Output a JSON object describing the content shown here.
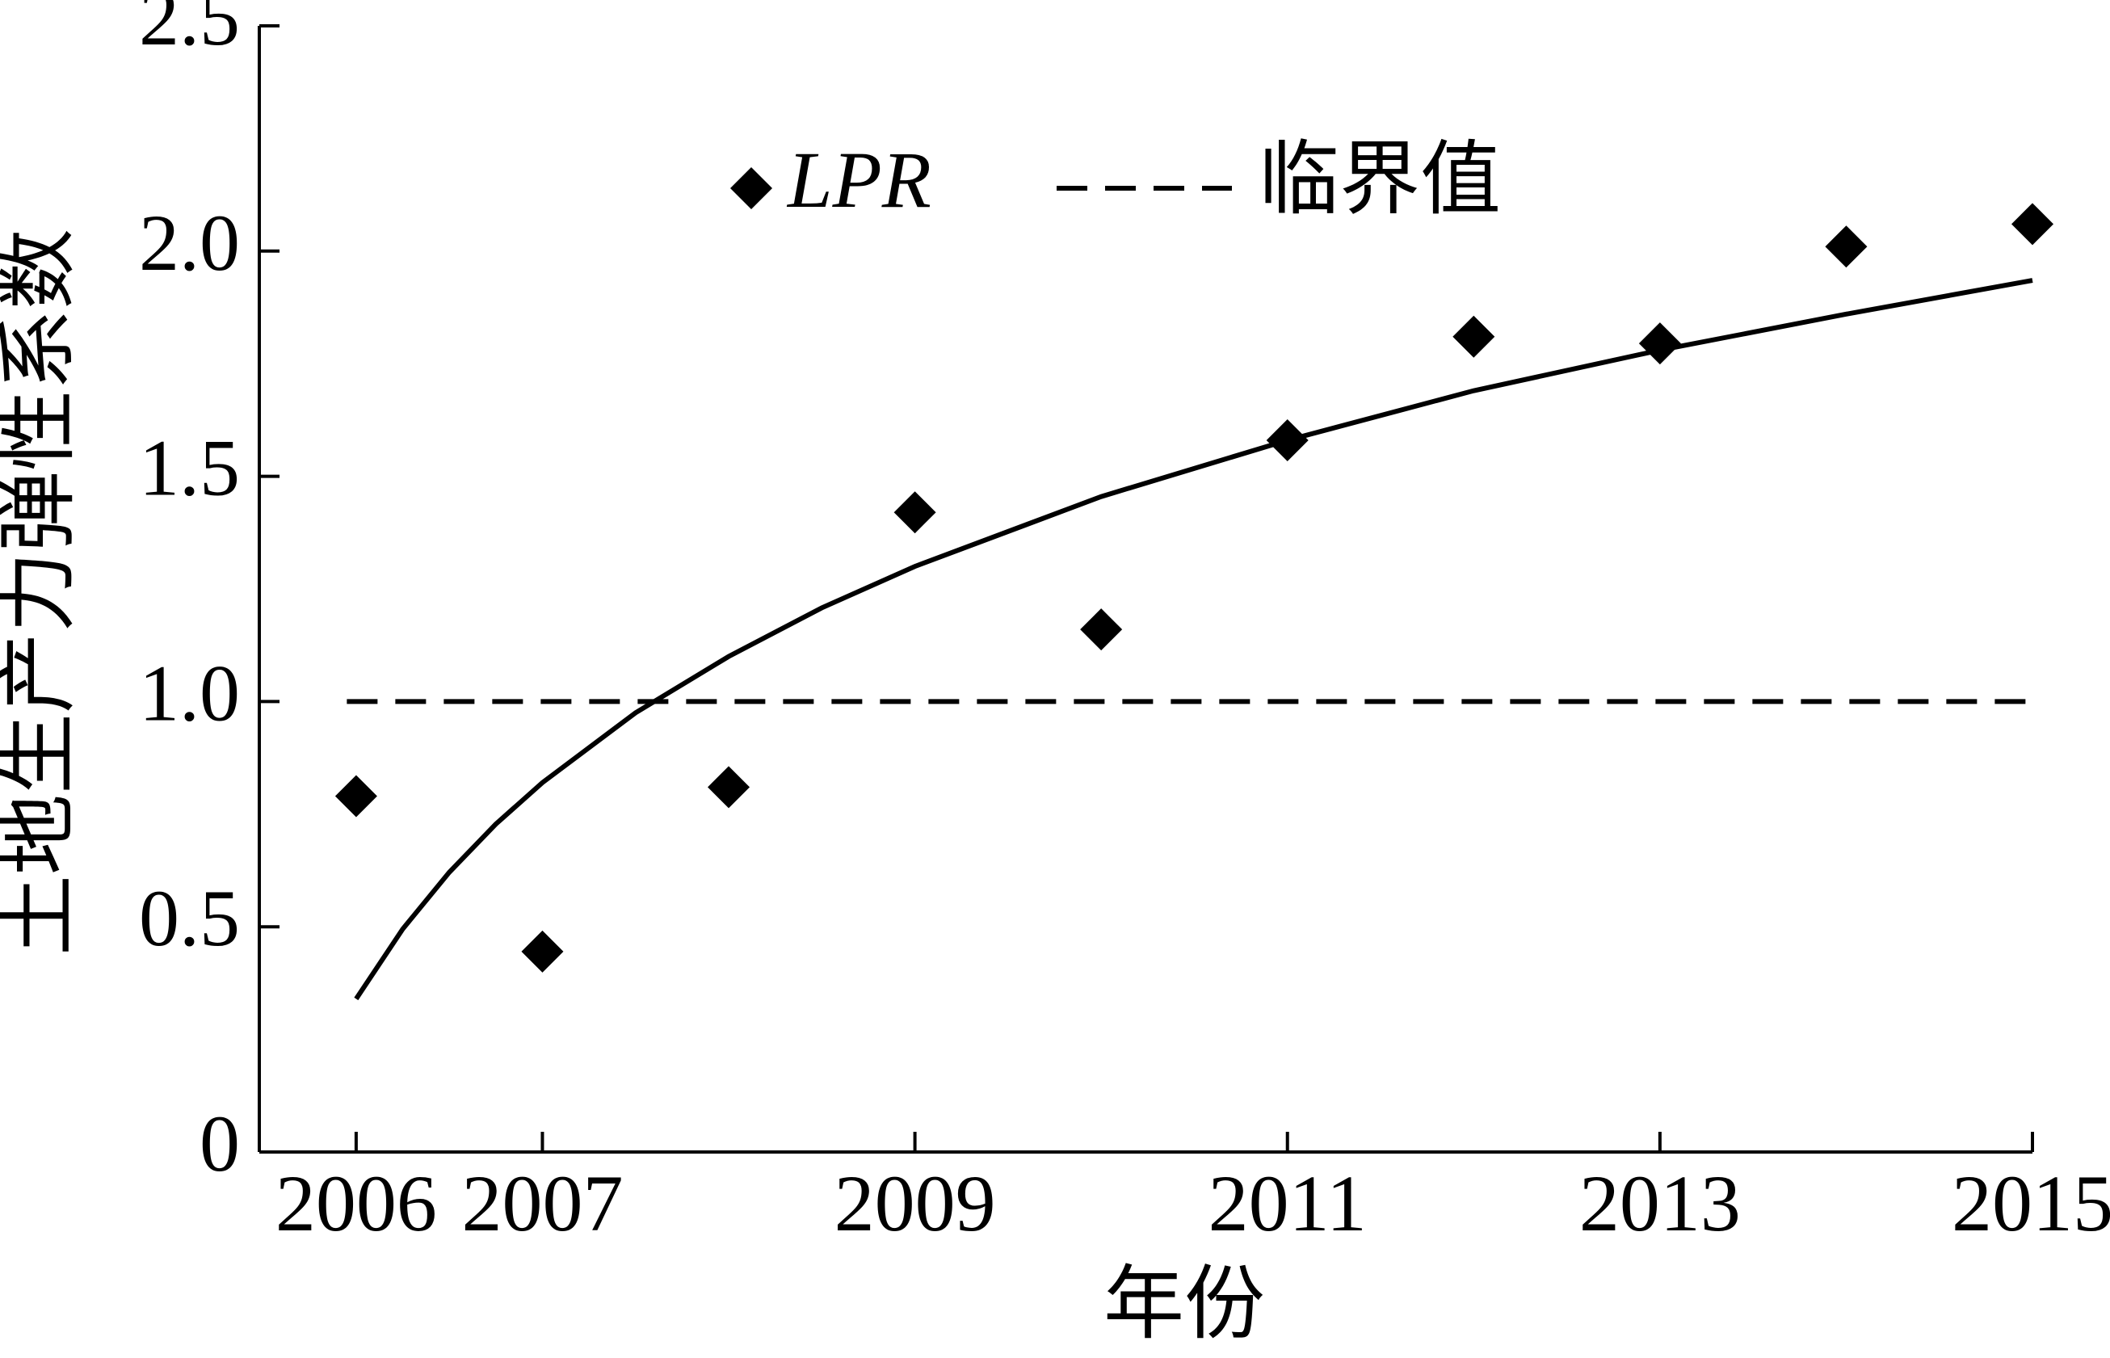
{
  "chart_data": {
    "type": "scatter",
    "xlabel": "年份",
    "ylabel": "土地生产力弹性系数",
    "xlim": [
      2005.48,
      2015
    ],
    "ylim": [
      0,
      2.5
    ],
    "xticks": [
      2006,
      2007,
      2009,
      2011,
      2013,
      2015
    ],
    "yticks": [
      0,
      0.5,
      {
        "value": 1,
        "label": "1.0"
      },
      1.5,
      {
        "value": 2,
        "label": "2.0"
      },
      2.5
    ],
    "series": [
      {
        "name": "LPR",
        "type": "scatter",
        "marker": "diamond",
        "color": "#000000",
        "x": [
          2006,
          2007,
          2008,
          2009,
          2010,
          2011,
          2012,
          2013,
          2014,
          2015
        ],
        "values": [
          0.79,
          0.445,
          0.81,
          1.42,
          1.16,
          1.58,
          1.81,
          1.795,
          2.01,
          2.06
        ]
      },
      {
        "type": "line",
        "color": "#000000",
        "x": [
          2006,
          2006.25,
          2006.5,
          2006.75,
          2007,
          2007.5,
          2008,
          2008.5,
          2009,
          2010,
          2011,
          2012,
          2013,
          2014,
          2015
        ],
        "values": [
          0.34,
          0.495,
          0.621,
          0.728,
          0.82,
          0.975,
          1.1,
          1.208,
          1.3,
          1.455,
          1.58,
          1.69,
          1.78,
          1.86,
          1.935
        ]
      },
      {
        "name": "临界值",
        "type": "line",
        "dash": true,
        "color": "#000000",
        "x": [
          2005.95,
          2015.03
        ],
        "values": [
          1,
          1
        ]
      }
    ]
  }
}
